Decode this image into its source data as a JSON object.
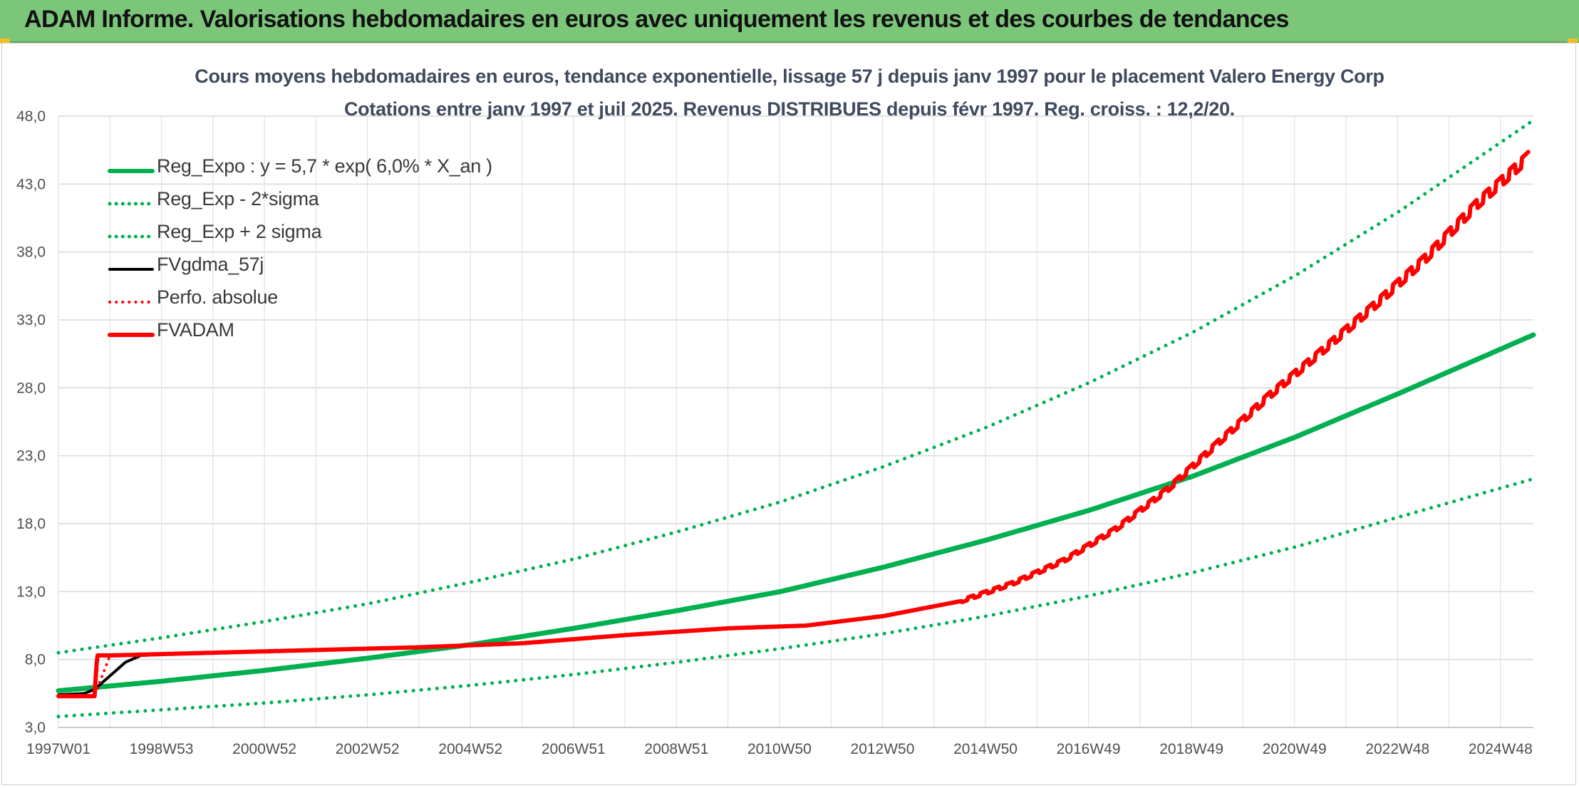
{
  "banner": {
    "title": "ADAM Informe. Valorisations hebdomadaires en euros avec uniquement les revenus et des courbes de tendances"
  },
  "chart_data": {
    "type": "line",
    "title": "Cours moyens hebdomadaires en euros, tendance exponentielle, lissage 57 j depuis janv 1997 pour le placement Valero Energy Corp",
    "subtitle": "Cotations entre janv 1997 et juil 2025. Revenus DISTRIBUES depuis févr 1997. Reg. croiss. : 12,2/20.",
    "xlabel": "",
    "ylabel": "",
    "ylim": [
      3.0,
      48.0
    ],
    "y_ticks": [
      "3,0",
      "8,0",
      "13,0",
      "18,0",
      "23,0",
      "28,0",
      "33,0",
      "38,0",
      "43,0",
      "48,0"
    ],
    "x_ticks": [
      "1997W01",
      "1998W53",
      "2000W52",
      "2002W52",
      "2004W52",
      "2006W51",
      "2008W51",
      "2010W50",
      "2012W50",
      "2014W50",
      "2016W49",
      "2018W49",
      "2020W49",
      "2022W48",
      "2024W48"
    ],
    "x_range": [
      1997.0,
      2025.6
    ],
    "grid": true,
    "legend_position": "top-left",
    "series": [
      {
        "name": "Reg_Expo : y = 5,7 * exp( 6,0% *  X_an )",
        "color": "#00b050",
        "style": "solid",
        "width": 7,
        "x": [
          1997.0,
          1999.0,
          2001.0,
          2003.0,
          2005.0,
          2007.0,
          2009.0,
          2011.0,
          2013.0,
          2015.0,
          2017.0,
          2019.0,
          2021.0,
          2023.0,
          2025.6
        ],
        "y": [
          5.7,
          6.4,
          7.2,
          8.1,
          9.1,
          10.3,
          11.6,
          13.0,
          14.8,
          16.8,
          19.0,
          21.5,
          24.4,
          27.6,
          31.9
        ]
      },
      {
        "name": "Reg_Exp - 2*sigma",
        "color": "#00b050",
        "style": "dotted",
        "width": 5,
        "x": [
          1997.0,
          1999.0,
          2001.0,
          2003.0,
          2005.0,
          2007.0,
          2009.0,
          2011.0,
          2013.0,
          2015.0,
          2017.0,
          2019.0,
          2021.0,
          2023.0,
          2025.6
        ],
        "y": [
          3.8,
          4.3,
          4.8,
          5.4,
          6.1,
          6.9,
          7.8,
          8.8,
          9.9,
          11.2,
          12.7,
          14.4,
          16.3,
          18.5,
          21.3
        ]
      },
      {
        "name": "Reg_Exp + 2 sigma",
        "color": "#00b050",
        "style": "dotted",
        "width": 5,
        "x": [
          1997.0,
          1999.0,
          2001.0,
          2003.0,
          2005.0,
          2007.0,
          2009.0,
          2011.0,
          2013.0,
          2015.0,
          2017.0,
          2019.0,
          2021.0,
          2023.0,
          2025.6
        ],
        "y": [
          8.5,
          9.6,
          10.8,
          12.1,
          13.7,
          15.4,
          17.4,
          19.6,
          22.2,
          25.1,
          28.4,
          32.1,
          36.3,
          41.0,
          47.7
        ]
      },
      {
        "name": "FVgdma_57j",
        "color": "#000000",
        "style": "solid",
        "width": 4,
        "x": [
          1997.0,
          1997.5,
          1997.7,
          1998.0,
          1998.3,
          1998.6,
          2000.0,
          2002.0,
          2004.0,
          2006.0,
          2008.0,
          2010.0,
          2011.5,
          2013.0,
          2014.5,
          2015.5,
          2016.5,
          2017.5,
          2018.5,
          2019.5,
          2020.5,
          2021.5,
          2022.5,
          2023.5,
          2024.5,
          2025.5
        ],
        "y": [
          5.4,
          5.5,
          5.8,
          6.8,
          7.8,
          8.3,
          8.5,
          8.7,
          8.9,
          9.2,
          9.8,
          10.3,
          10.5,
          11.2,
          12.3,
          13.6,
          15.3,
          17.6,
          20.5,
          24.0,
          27.5,
          30.7,
          34.0,
          37.5,
          41.5,
          45.0
        ]
      },
      {
        "name": "Perfo. absolue",
        "color": "#ff0000",
        "style": "dotted",
        "width": 4,
        "x": [
          1997.0,
          1997.5,
          1997.7,
          1998.0,
          2000.0,
          2002.0,
          2004.0,
          2006.0,
          2008.0,
          2010.0,
          2011.5,
          2013.0,
          2014.5,
          2015.5,
          2016.5,
          2017.5,
          2018.5,
          2019.5,
          2020.5,
          2021.5,
          2022.5,
          2023.5,
          2024.5,
          2025.5
        ],
        "y": [
          5.3,
          5.3,
          5.3,
          8.3,
          8.5,
          8.7,
          8.9,
          9.2,
          9.8,
          10.3,
          10.5,
          11.2,
          12.3,
          13.6,
          15.3,
          17.6,
          20.5,
          24.0,
          27.5,
          30.7,
          34.0,
          37.5,
          41.5,
          45.0
        ]
      },
      {
        "name": "FVADAM",
        "color": "#ff0000",
        "style": "solid",
        "width": 6,
        "x": [
          1997.0,
          1997.5,
          1997.7,
          1997.75,
          1998.0,
          2000.0,
          2002.0,
          2004.0,
          2006.0,
          2008.0,
          2010.0,
          2011.5,
          2013.0,
          2014.5,
          2015.5,
          2016.5,
          2017.5,
          2018.5,
          2019.5,
          2020.5,
          2021.5,
          2022.5,
          2023.5,
          2024.5,
          2025.5
        ],
        "y": [
          5.3,
          5.3,
          5.3,
          8.3,
          8.3,
          8.5,
          8.7,
          8.9,
          9.2,
          9.8,
          10.3,
          10.5,
          11.2,
          12.3,
          13.6,
          15.3,
          17.6,
          20.5,
          24.0,
          27.5,
          30.7,
          34.0,
          37.5,
          41.5,
          45.0
        ]
      }
    ]
  }
}
